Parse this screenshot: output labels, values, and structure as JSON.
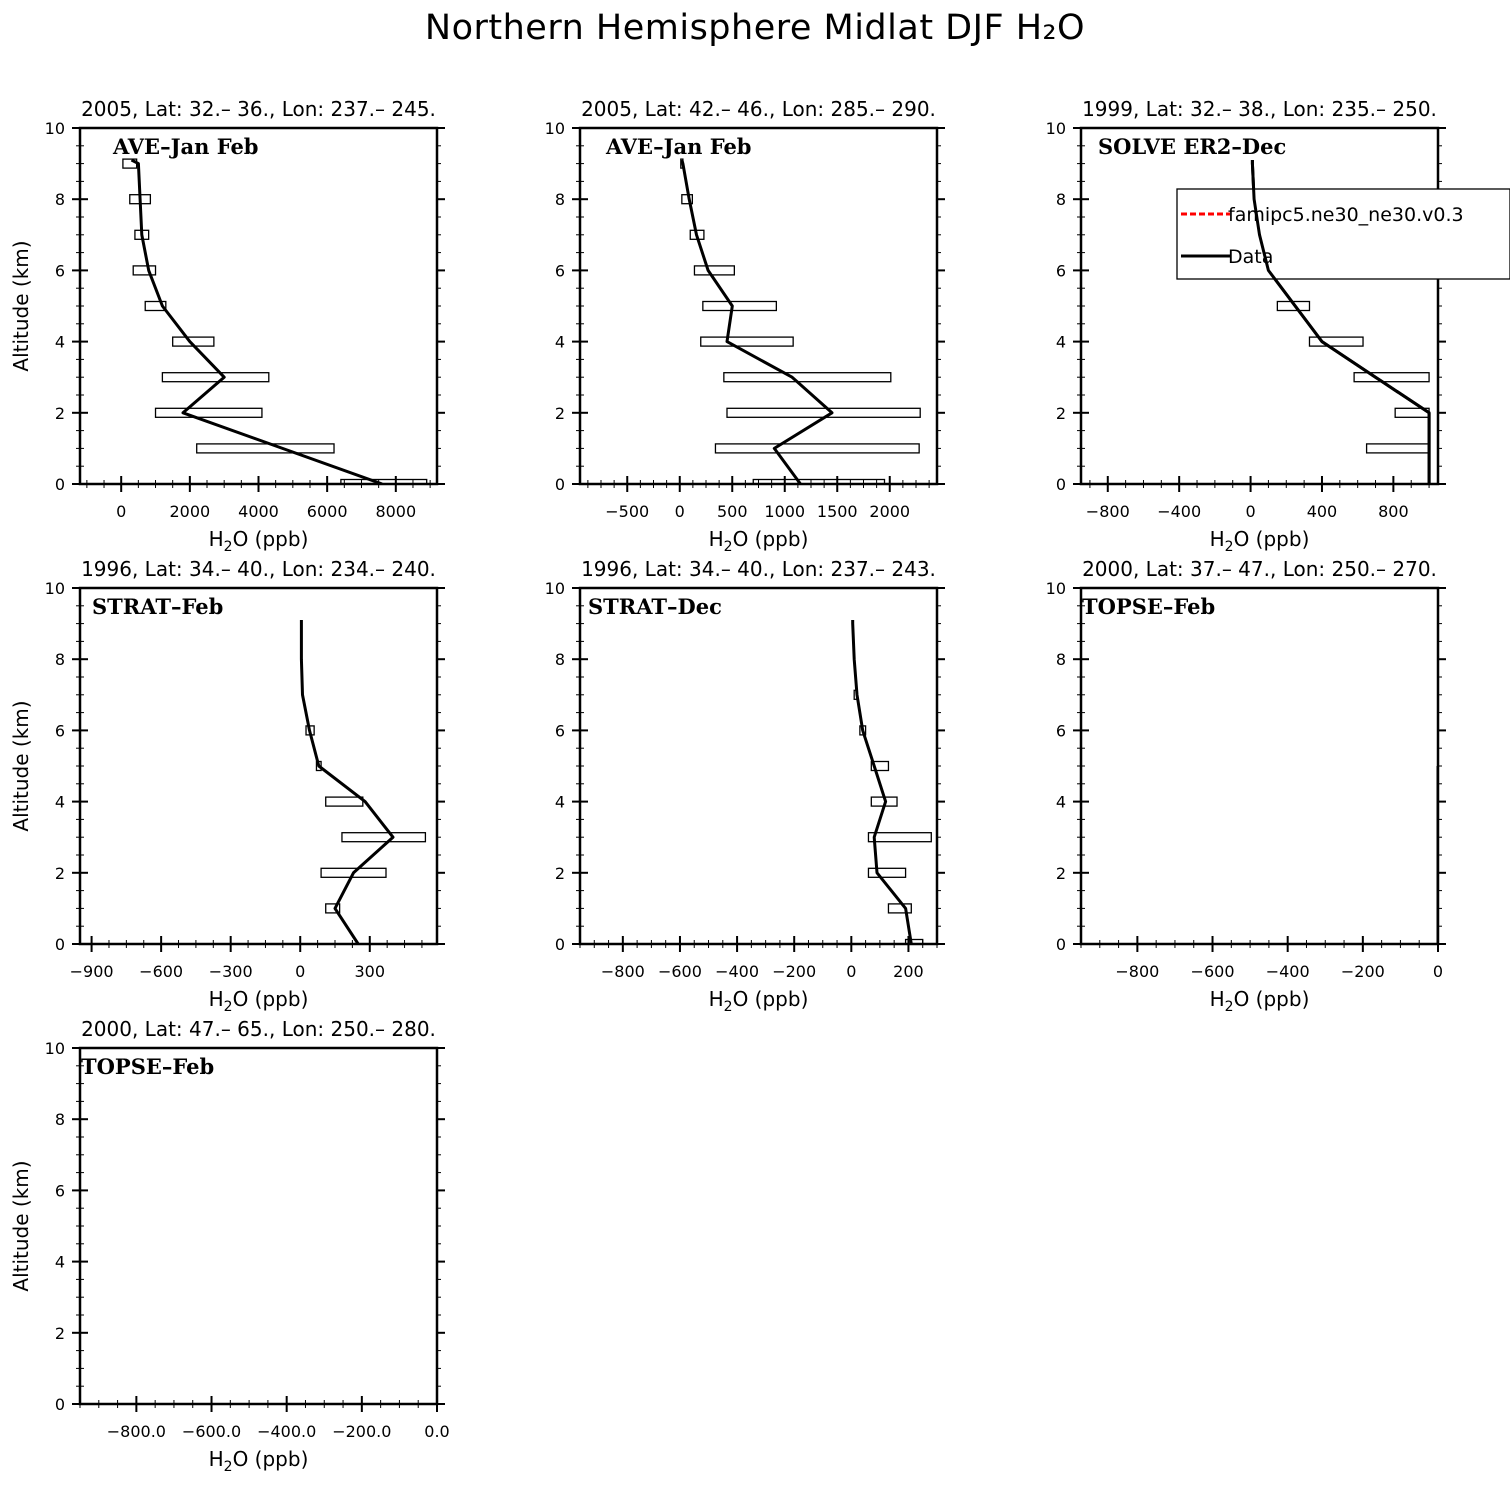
{
  "title": "Northern Hemisphere Midlat DJF H₂O",
  "legend": {
    "model_label": "famipc5.ne30_ne30.v0.3",
    "model_color": "#ff0000",
    "data_label": "Data",
    "data_color": "#000000"
  },
  "chart_data": [
    {
      "type": "line",
      "title": "2005, Lat: 32.– 36., Lon: 237.– 245.",
      "campaign": "AVE–Jan Feb",
      "xlabel": "H₂O (ppb)",
      "ylabel": "Altitude (km)",
      "xlim": [
        -1200,
        9200
      ],
      "ylim": [
        0,
        10
      ],
      "xticks": [
        0,
        2000,
        4000,
        6000,
        8000
      ],
      "xtick_labels": [
        "0",
        "2000",
        "4000",
        "6000",
        "8000"
      ],
      "yticks": [
        0,
        2,
        4,
        6,
        8,
        10
      ],
      "ytick_labels": [
        "0",
        "2",
        "4",
        "6",
        "8",
        "10"
      ],
      "series": [
        {
          "name": "Data",
          "x": [
            7600,
            4700,
            1800,
            3000,
            2000,
            1200,
            800,
            600,
            550,
            500,
            300
          ],
          "y": [
            0,
            1,
            2,
            3,
            4,
            5,
            6,
            7,
            8,
            9,
            9.1
          ]
        }
      ],
      "ranges": [
        {
          "y": 0,
          "lo": 6400,
          "hi": 8900
        },
        {
          "y": 1,
          "lo": 2200,
          "hi": 6200
        },
        {
          "y": 2,
          "lo": 1000,
          "hi": 4100
        },
        {
          "y": 3,
          "lo": 1200,
          "hi": 4300
        },
        {
          "y": 4,
          "lo": 1500,
          "hi": 2700
        },
        {
          "y": 5,
          "lo": 700,
          "hi": 1300
        },
        {
          "y": 6,
          "lo": 350,
          "hi": 1000
        },
        {
          "y": 7,
          "lo": 400,
          "hi": 800
        },
        {
          "y": 8,
          "lo": 250,
          "hi": 850
        },
        {
          "y": 9,
          "lo": 50,
          "hi": 450
        }
      ]
    },
    {
      "type": "line",
      "title": "2005, Lat: 42.– 46., Lon: 285.– 290.",
      "campaign": "AVE–Jan Feb",
      "xlabel": "H₂O (ppb)",
      "ylabel": "",
      "xlim": [
        -950,
        2450
      ],
      "ylim": [
        0,
        10
      ],
      "xticks": [
        -500,
        0,
        500,
        1000,
        1500,
        2000
      ],
      "xtick_labels": [
        "−500",
        "0",
        "500",
        "1000",
        "1500",
        "2000"
      ],
      "yticks": [
        0,
        2,
        4,
        6,
        8,
        10
      ],
      "ytick_labels": [
        "0",
        "2",
        "4",
        "6",
        "8",
        "10"
      ],
      "series": [
        {
          "name": "Data",
          "x": [
            1150,
            900,
            1450,
            1070,
            450,
            500,
            270,
            160,
            90,
            30,
            20
          ],
          "y": [
            0,
            1,
            2,
            3,
            4,
            5,
            6,
            7,
            8,
            9,
            9.1
          ]
        }
      ],
      "ranges": [
        {
          "y": 0,
          "lo": 700,
          "hi": 1950
        },
        {
          "y": 1,
          "lo": 340,
          "hi": 2280
        },
        {
          "y": 2,
          "lo": 450,
          "hi": 2290
        },
        {
          "y": 3,
          "lo": 420,
          "hi": 2010
        },
        {
          "y": 4,
          "lo": 200,
          "hi": 1080
        },
        {
          "y": 5,
          "lo": 220,
          "hi": 920
        },
        {
          "y": 6,
          "lo": 140,
          "hi": 520
        },
        {
          "y": 7,
          "lo": 100,
          "hi": 230
        },
        {
          "y": 8,
          "lo": 20,
          "hi": 120
        },
        {
          "y": 9,
          "lo": 10,
          "hi": 30
        }
      ]
    },
    {
      "type": "line",
      "title": "1999, Lat: 32.– 38., Lon: 235.– 250.",
      "campaign": "SOLVE ER2–Dec",
      "xlabel": "H₂O (ppb)",
      "ylabel": "",
      "xlim": [
        -950,
        1050
      ],
      "ylim": [
        0,
        10
      ],
      "xticks": [
        -800,
        -400,
        0,
        400,
        800
      ],
      "xtick_labels": [
        "−800",
        "−400",
        "0",
        "400",
        "800"
      ],
      "yticks": [
        0,
        2,
        4,
        6,
        8,
        10
      ],
      "ytick_labels": [
        "0",
        "2",
        "4",
        "6",
        "8",
        "10"
      ],
      "has_legend": true,
      "series": [
        {
          "name": "Data",
          "x": [
            1000,
            1000,
            1000,
            700,
            400,
            250,
            100,
            50,
            20,
            10,
            10
          ],
          "y": [
            0,
            1,
            2,
            3,
            4,
            5,
            6,
            7,
            8,
            9,
            9.1
          ]
        }
      ],
      "ranges": [
        {
          "y": 1,
          "lo": 650,
          "hi": 1000
        },
        {
          "y": 2,
          "lo": 810,
          "hi": 1000
        },
        {
          "y": 3,
          "lo": 580,
          "hi": 1000
        },
        {
          "y": 4,
          "lo": 330,
          "hi": 630
        },
        {
          "y": 5,
          "lo": 150,
          "hi": 330
        },
        {
          "y": 6,
          "lo": 80,
          "hi": 110
        },
        {
          "y": 7,
          "lo": 40,
          "hi": 60
        }
      ]
    },
    {
      "type": "line",
      "title": "1996, Lat: 34.– 40., Lon: 234.– 240.",
      "campaign": "STRAT–Feb",
      "xlabel": "H₂O (ppb)",
      "ylabel": "Altitude (km)",
      "xlim": [
        -950,
        590
      ],
      "ylim": [
        0,
        10
      ],
      "xticks": [
        -900,
        -600,
        -300,
        0,
        300
      ],
      "xtick_labels": [
        "−900",
        "−600",
        "−300",
        "0",
        "300"
      ],
      "yticks": [
        0,
        2,
        4,
        6,
        8,
        10
      ],
      "ytick_labels": [
        "0",
        "2",
        "4",
        "6",
        "8",
        "10"
      ],
      "series": [
        {
          "name": "Data",
          "x": [
            250,
            150,
            230,
            400,
            280,
            80,
            40,
            10,
            5,
            5,
            5
          ],
          "y": [
            0,
            1,
            2,
            3,
            4,
            5,
            6,
            7,
            8,
            9,
            9.1
          ]
        }
      ],
      "ranges": [
        {
          "y": 1,
          "lo": 110,
          "hi": 170
        },
        {
          "y": 2,
          "lo": 90,
          "hi": 370
        },
        {
          "y": 3,
          "lo": 180,
          "hi": 540
        },
        {
          "y": 4,
          "lo": 110,
          "hi": 270
        },
        {
          "y": 5,
          "lo": 70,
          "hi": 90
        },
        {
          "y": 6,
          "lo": 25,
          "hi": 60
        }
      ]
    },
    {
      "type": "line",
      "title": "1996, Lat: 34.– 40., Lon: 237.– 243.",
      "campaign": "STRAT–Dec",
      "xlabel": "H₂O (ppb)",
      "ylabel": "",
      "xlim": [
        -950,
        300
      ],
      "ylim": [
        0,
        10
      ],
      "xticks": [
        -800,
        -600,
        -400,
        -200,
        0,
        200
      ],
      "xtick_labels": [
        "−800",
        "−600",
        "−400",
        "−200",
        "0",
        "200"
      ],
      "yticks": [
        0,
        2,
        4,
        6,
        8,
        10
      ],
      "ytick_labels": [
        "0",
        "2",
        "4",
        "6",
        "8",
        "10"
      ],
      "series": [
        {
          "name": "Data",
          "x": [
            210,
            190,
            90,
            80,
            120,
            80,
            40,
            20,
            10,
            5,
            5
          ],
          "y": [
            0,
            1,
            2,
            3,
            4,
            5,
            6,
            7,
            8,
            9,
            9.1
          ]
        }
      ],
      "ranges": [
        {
          "y": 0,
          "lo": 190,
          "hi": 250
        },
        {
          "y": 1,
          "lo": 130,
          "hi": 210
        },
        {
          "y": 2,
          "lo": 60,
          "hi": 190
        },
        {
          "y": 3,
          "lo": 60,
          "hi": 280
        },
        {
          "y": 4,
          "lo": 70,
          "hi": 160
        },
        {
          "y": 5,
          "lo": 70,
          "hi": 130
        },
        {
          "y": 6,
          "lo": 30,
          "hi": 50
        },
        {
          "y": 7,
          "lo": 10,
          "hi": 20
        }
      ]
    },
    {
      "type": "line",
      "title": "2000, Lat: 37.– 47., Lon: 250.– 270.",
      "campaign": "TOPSE–Feb",
      "xlabel": "H₂O (ppb)",
      "ylabel": "",
      "xlim": [
        -950,
        0
      ],
      "ylim": [
        0,
        10
      ],
      "xticks": [
        -800,
        -600,
        -400,
        -200,
        0
      ],
      "xtick_labels": [
        "−800",
        "−600",
        "−400",
        "−200",
        "0"
      ],
      "yticks": [
        0,
        2,
        4,
        6,
        8,
        10
      ],
      "ytick_labels": [
        "0",
        "2",
        "4",
        "6",
        "8",
        "10"
      ],
      "series": [
        {
          "name": "Data",
          "x": [
            0,
            0,
            0,
            0,
            0,
            0
          ],
          "y": [
            0,
            1,
            2,
            3,
            4,
            5
          ]
        }
      ],
      "ranges": []
    },
    {
      "type": "line",
      "title": "2000, Lat: 47.– 65., Lon: 250.– 280.",
      "campaign": "TOPSE–Feb",
      "xlabel": "H₂O (ppb)",
      "ylabel": "Altitude (km)",
      "xlim": [
        -950,
        0
      ],
      "ylim": [
        0,
        10
      ],
      "xticks": [
        -800,
        -600,
        -400,
        -200,
        0
      ],
      "xtick_labels": [
        "−800.0",
        "−600.0",
        "−400.0",
        "−200.0",
        "0.0"
      ],
      "yticks": [
        0,
        2,
        4,
        6,
        8,
        10
      ],
      "ytick_labels": [
        "0",
        "2",
        "4",
        "6",
        "8",
        "10"
      ],
      "series": [],
      "ranges": []
    }
  ]
}
